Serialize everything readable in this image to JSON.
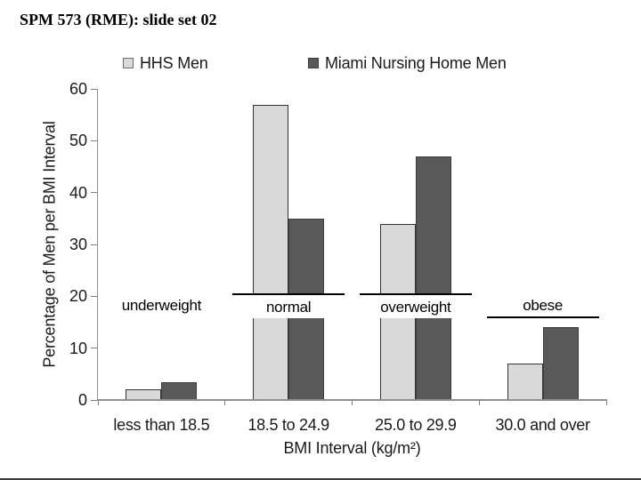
{
  "page": {
    "header": "SPM 573 (RME): slide set 02"
  },
  "chart_data": {
    "type": "bar",
    "title": "",
    "categories": [
      "less than 18.5",
      "18.5 to 24.9",
      "25.0 to 29.9",
      "30.0 and over"
    ],
    "series": [
      {
        "name": "HHS Men",
        "color": "#d9d9d9",
        "border_color": "#333333",
        "values": [
          2,
          57,
          34,
          7
        ]
      },
      {
        "name": "Miami Nursing Home Men",
        "color": "#595959",
        "border_color": "#3d3d3d",
        "values": [
          3.5,
          35,
          47,
          14
        ]
      }
    ],
    "xlabel": "BMI Interval (kg/m²)",
    "ylabel": "Percentage of Men per BMI Interval",
    "ylim": [
      0,
      60
    ],
    "ytick_step": 10,
    "yticks": [
      0,
      10,
      20,
      30,
      40,
      50,
      60
    ],
    "grid": false,
    "legend_position": "top",
    "bar_layout": "clustered",
    "annotations": [
      {
        "label": "underweight",
        "category_index": 0,
        "style": "plain"
      },
      {
        "label": "normal",
        "category_index": 1,
        "style": "band-line-above"
      },
      {
        "label": "overweight",
        "category_index": 2,
        "style": "band-line-above"
      },
      {
        "label": "obese",
        "category_index": 3,
        "style": "line-below"
      }
    ],
    "colors": {
      "axis": "#909090",
      "tick": "#808080",
      "text": "#1a1a1a",
      "annotation_line": "#000000"
    }
  }
}
